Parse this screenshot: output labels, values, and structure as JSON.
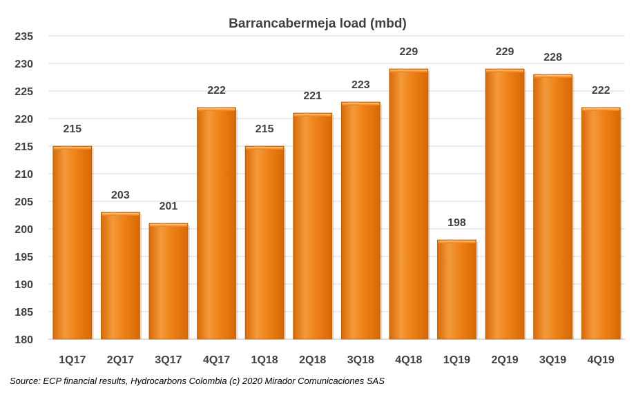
{
  "chart_data": {
    "type": "bar",
    "title": "Barrancabermeja load (mbd)",
    "xlabel": "",
    "ylabel": "",
    "categories": [
      "1Q17",
      "2Q17",
      "3Q17",
      "4Q17",
      "1Q18",
      "2Q18",
      "3Q18",
      "4Q18",
      "1Q19",
      "2Q19",
      "3Q19",
      "4Q19"
    ],
    "values": [
      215,
      203,
      201,
      222,
      215,
      221,
      223,
      229,
      198,
      229,
      228,
      222
    ],
    "data_labels": [
      "215",
      "203",
      "201",
      "222",
      "215",
      "221",
      "223",
      "229",
      "198",
      "229",
      "228",
      "222"
    ],
    "ylim": [
      180,
      235
    ],
    "yticks": [
      180,
      185,
      190,
      195,
      200,
      205,
      210,
      215,
      220,
      225,
      230,
      235
    ],
    "grid": true,
    "legend": "none",
    "bar_color": "#ED7D0E",
    "bar_highlight_color": "#F6B26B",
    "bar_edge_color": "#B85F06",
    "text_color": "#404040",
    "grid_color": "#D9D9D9"
  },
  "source_note": "Source:  ECP financial results,  Hydrocarbons  Colombia (c) 2020 Mirador  Comunicaciones SAS"
}
